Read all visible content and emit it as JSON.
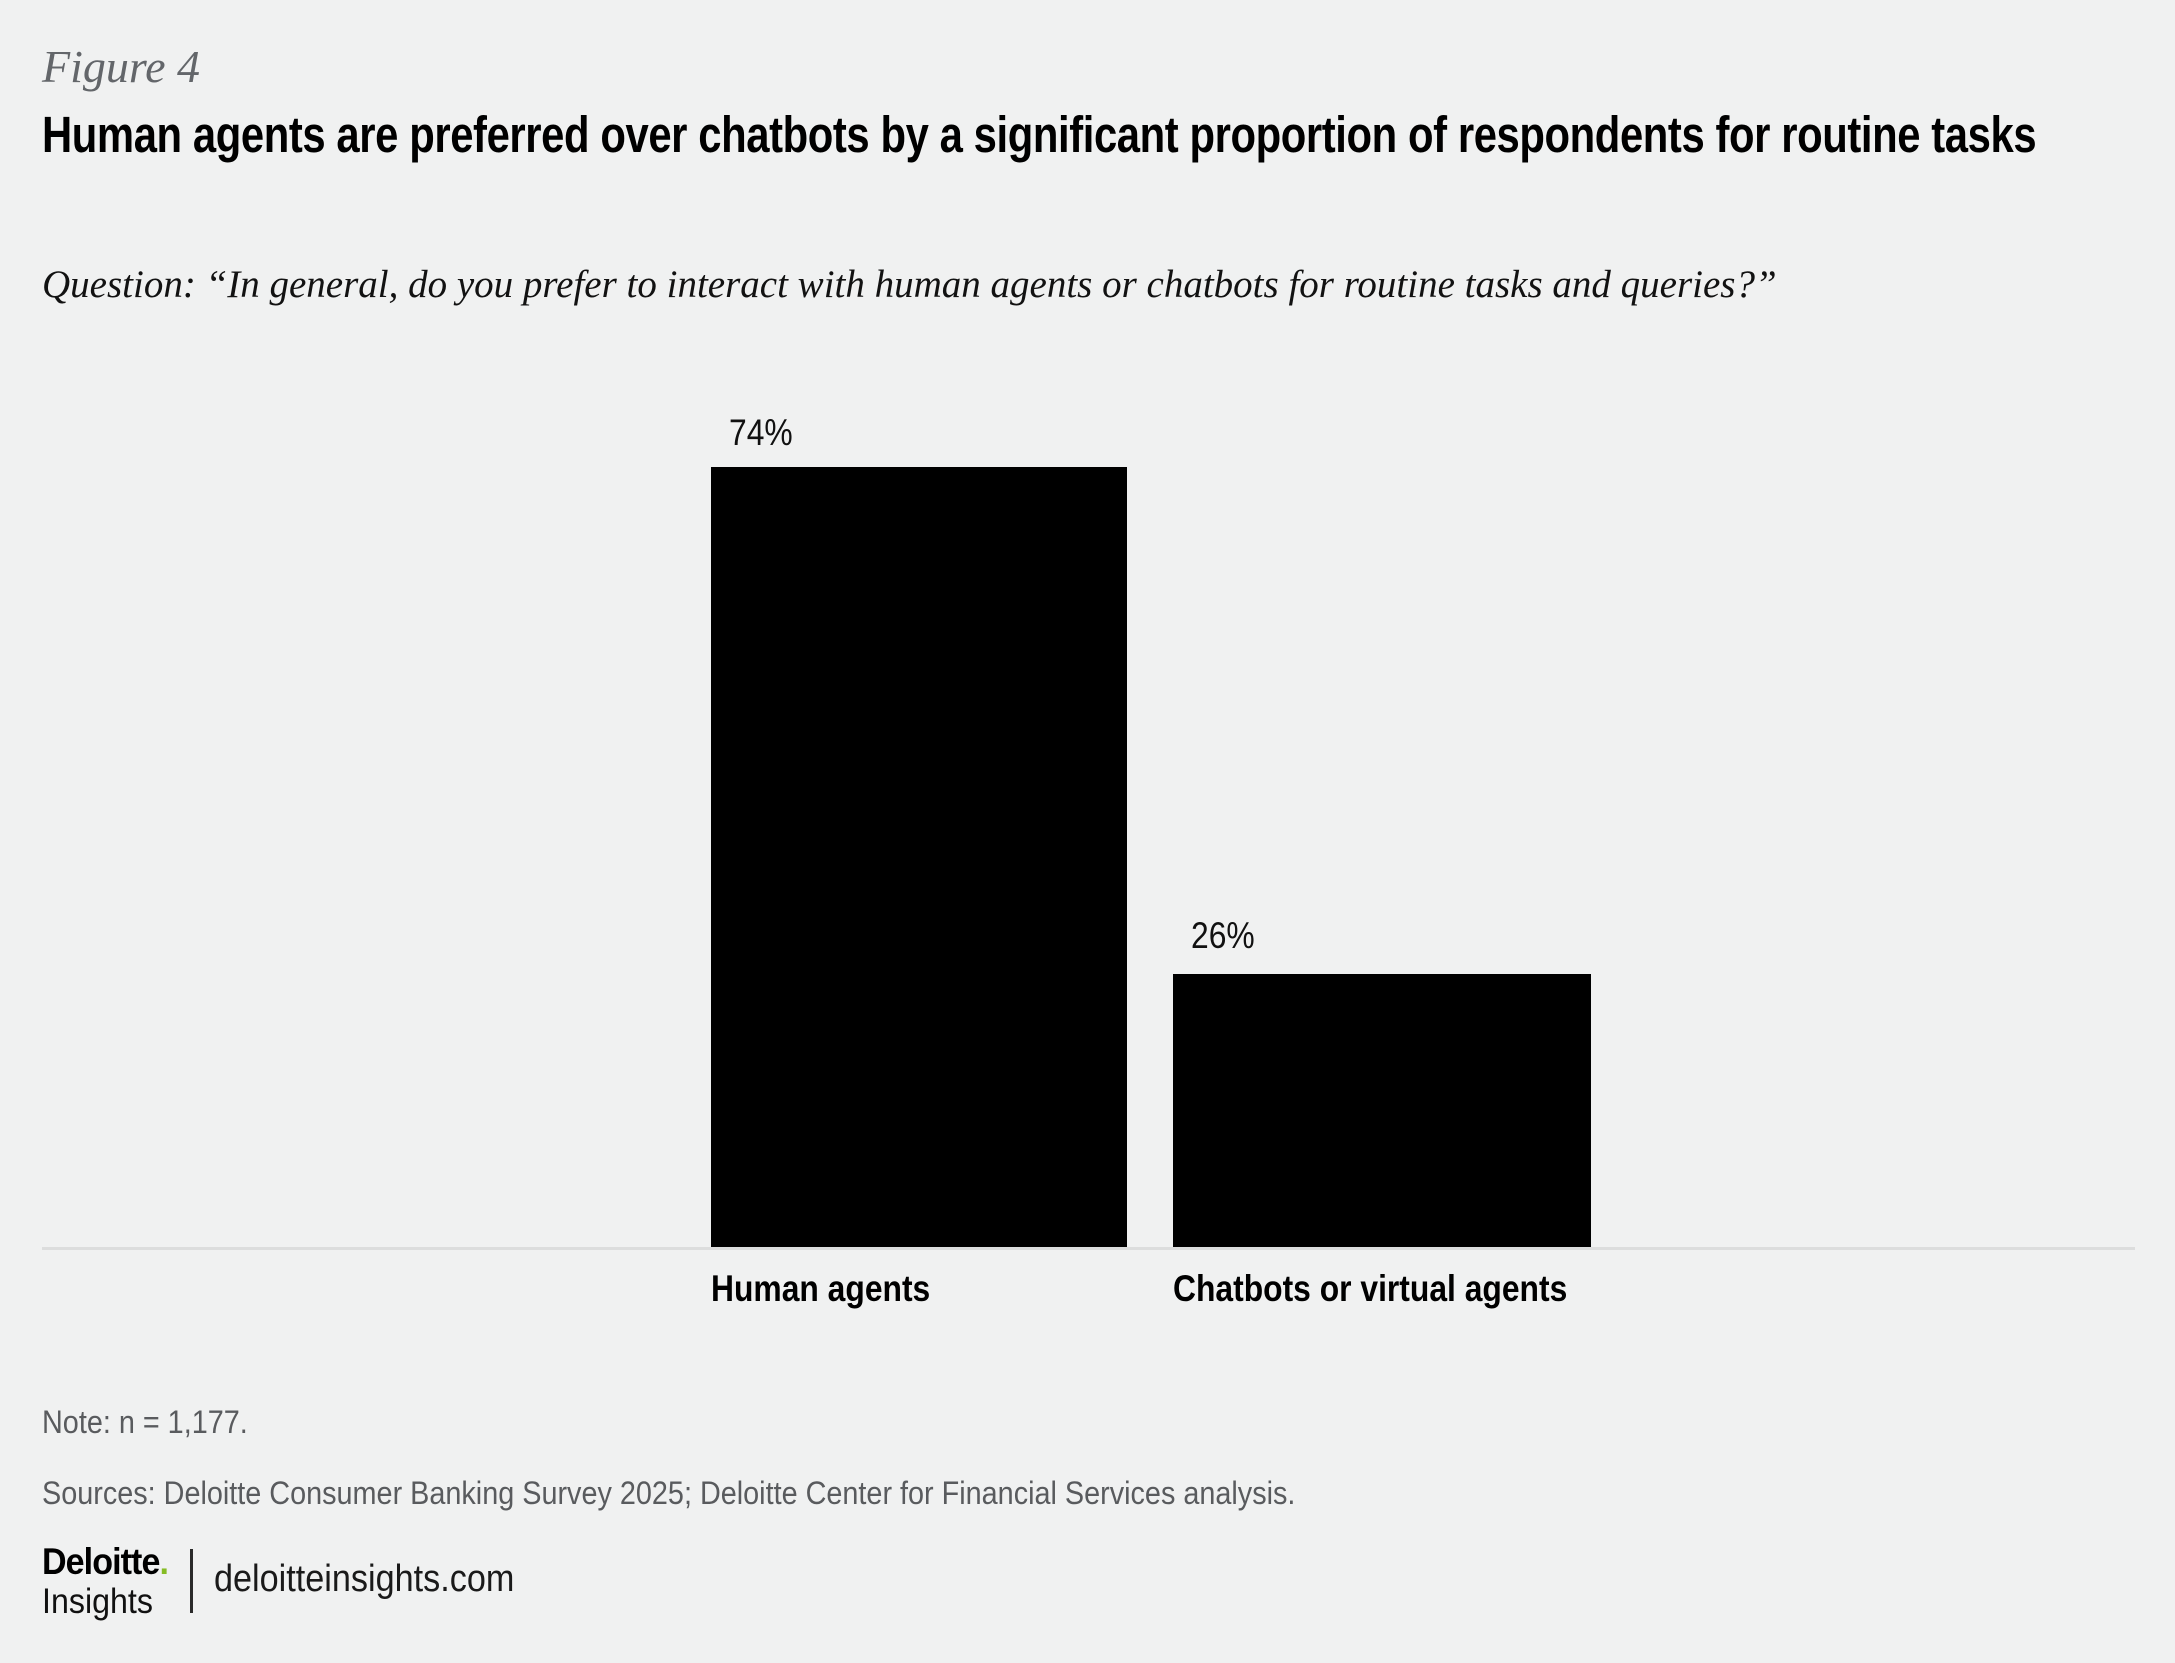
{
  "figure_label": "Figure 4",
  "title": "Human agents are preferred over chatbots by a significant proportion of respondents for routine tasks",
  "question": "Question: “In general, do you prefer to interact with human agents or chatbots for routine tasks and queries?”",
  "chart_data": {
    "type": "bar",
    "categories": [
      "Human agents",
      "Chatbots or virtual agents"
    ],
    "values": [
      74,
      26
    ],
    "value_labels": [
      "74%",
      "26%"
    ],
    "title": "Human agents are preferred over chatbots by a significant proportion of respondents for routine tasks",
    "xlabel": "",
    "ylabel": "",
    "unit": "%",
    "ylim": [
      0,
      80
    ],
    "grid": false,
    "legend": "none",
    "bar_color": "#000000"
  },
  "note": "Note: n = 1,177.",
  "sources": "Sources: Deloitte Consumer Banking Survey 2025; Deloitte Center for Financial Services analysis.",
  "footer": {
    "brand_word": "Deloitte",
    "brand_dot": ".",
    "brand_sub": "Insights",
    "site": "deloitteinsights.com"
  },
  "colors": {
    "background": "#F0F1F1",
    "bar": "#000000",
    "accent_green": "#86BC25",
    "muted_text": "#63666A",
    "axis_line": "#DCDDDD"
  }
}
